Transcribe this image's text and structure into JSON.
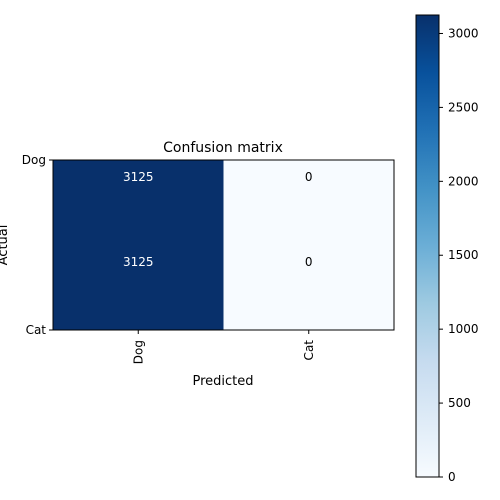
{
  "chart_data": {
    "type": "heatmap",
    "title": "Confusion matrix",
    "xlabel": "Predicted",
    "ylabel": "Actual",
    "x_categories": [
      "Dog",
      "Cat"
    ],
    "y_tick_labels": [
      "Dog",
      "Cat"
    ],
    "matrix": [
      [
        3125,
        0
      ],
      [
        3125,
        0
      ]
    ],
    "cell_labels": [
      [
        "3125",
        "0"
      ],
      [
        "3125",
        "0"
      ]
    ],
    "colormap": "Blues",
    "colorbar": {
      "range": [
        0,
        3125
      ],
      "ticks": [
        0,
        500,
        1000,
        1500,
        2000,
        2500,
        3000
      ],
      "tick_labels": [
        "0",
        "500",
        "1000",
        "1500",
        "2000",
        "2500",
        "3000"
      ]
    },
    "colors": {
      "low": "#f7fbff",
      "high": "#08306b",
      "text_on_dark": "#ffffff",
      "text_on_light": "#000000"
    }
  }
}
